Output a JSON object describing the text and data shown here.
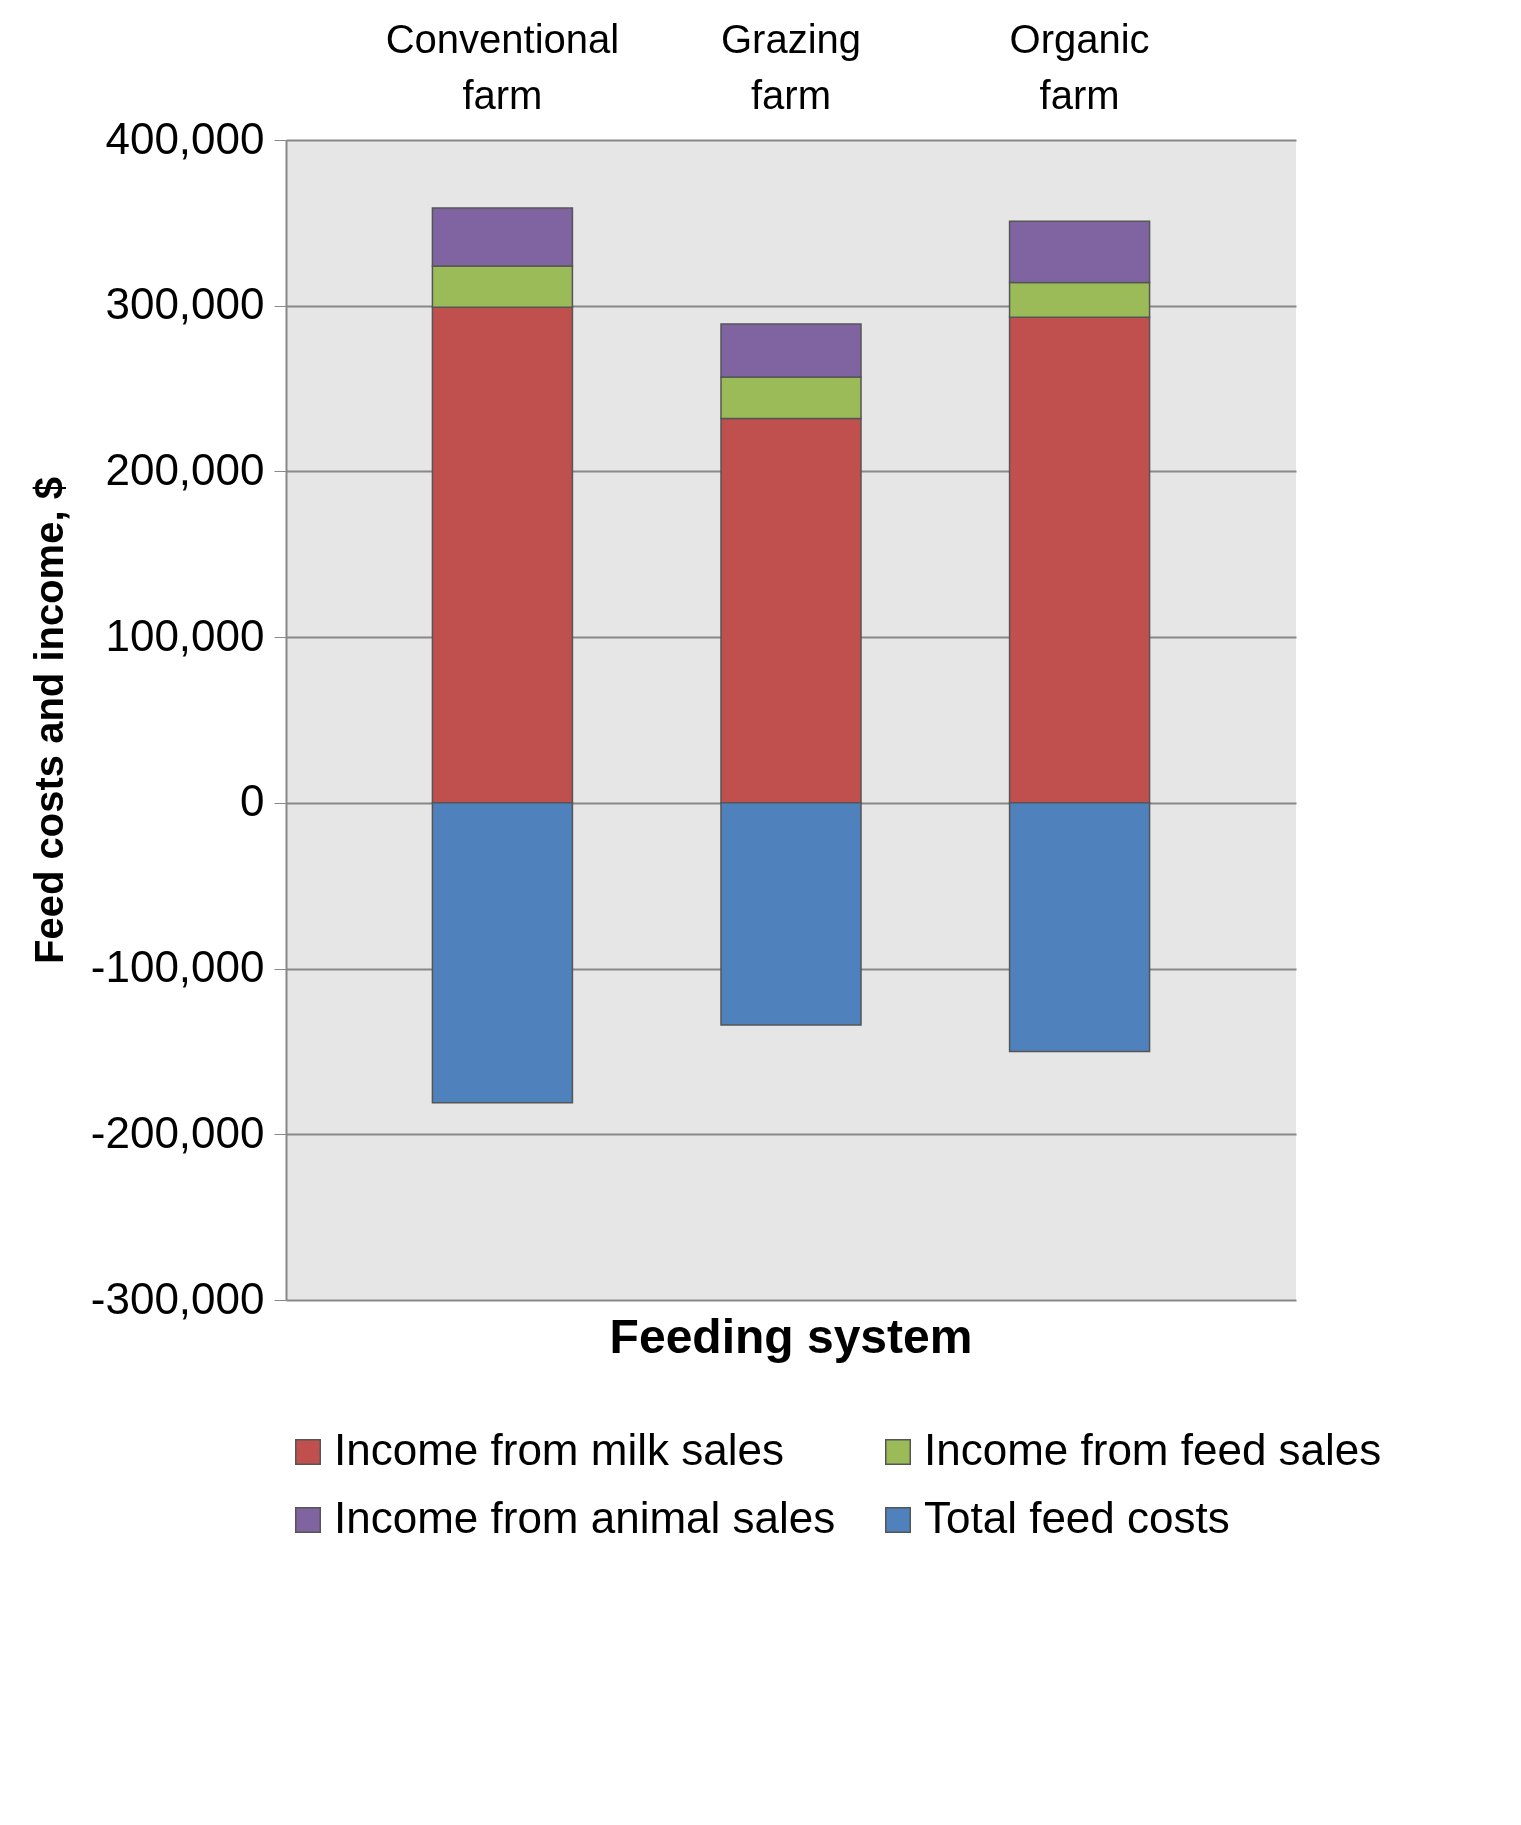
{
  "chart_data": {
    "type": "bar",
    "stacked": true,
    "xlabel": "Feeding system",
    "ylabel": "Feed costs and income, $",
    "categories": [
      "Conventional farm",
      "Grazing farm",
      "Organic farm"
    ],
    "series": [
      {
        "name": "Income from milk sales",
        "color": "#c0504d",
        "values": [
          299000,
          232000,
          293000
        ]
      },
      {
        "name": "Income from feed sales",
        "color": "#9bbb59",
        "values": [
          25000,
          25000,
          21000
        ]
      },
      {
        "name": "Income from animal sales",
        "color": "#8064a2",
        "values": [
          35000,
          32000,
          37000
        ]
      },
      {
        "name": "Total feed costs",
        "color": "#4f81bd",
        "values": [
          -181000,
          -134000,
          -150000
        ]
      }
    ],
    "ylim": [
      -300000,
      400000
    ],
    "yticks": [
      {
        "value": -300000,
        "label": "-300,000"
      },
      {
        "value": -200000,
        "label": "-200,000"
      },
      {
        "value": -100000,
        "label": "-100,000"
      },
      0,
      {
        "value": 100000,
        "label": "100,000"
      },
      {
        "value": 200000,
        "label": "200,000"
      },
      {
        "value": 300000,
        "label": "300,000"
      },
      {
        "value": 400000,
        "label": "400,000"
      }
    ],
    "grid": "y",
    "legend": "bottom"
  }
}
